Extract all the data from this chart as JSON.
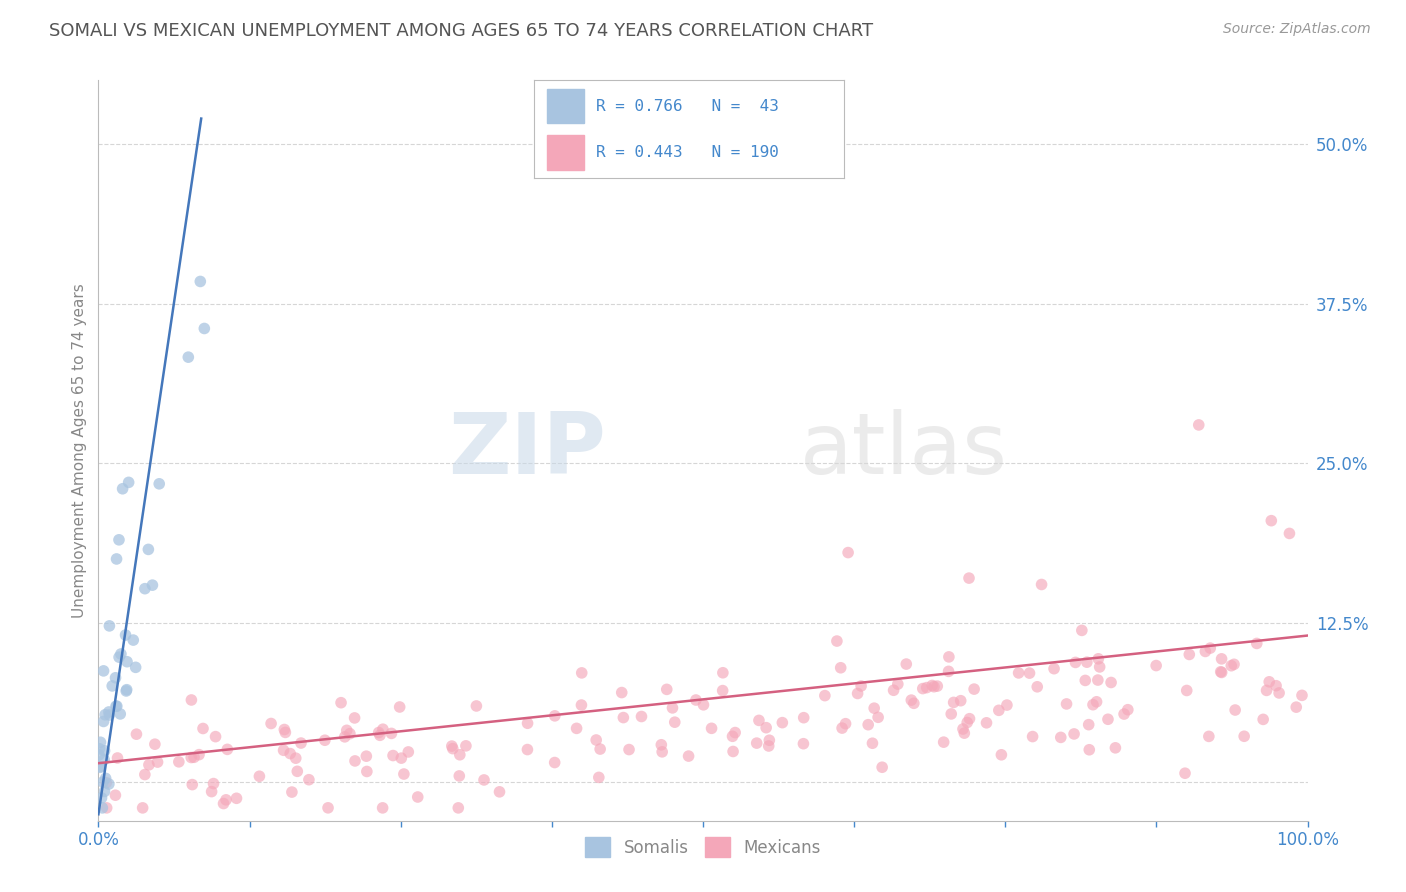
{
  "title": "SOMALI VS MEXICAN UNEMPLOYMENT AMONG AGES 65 TO 74 YEARS CORRELATION CHART",
  "source": "Source: ZipAtlas.com",
  "ylabel": "Unemployment Among Ages 65 to 74 years",
  "xlim": [
    0,
    1.0
  ],
  "ylim": [
    -0.03,
    0.55
  ],
  "xticks": [
    0.0,
    0.125,
    0.25,
    0.375,
    0.5,
    0.625,
    0.75,
    0.875,
    1.0
  ],
  "xticklabels": [
    "0.0%",
    "",
    "",
    "",
    "",
    "",
    "",
    "",
    "100.0%"
  ],
  "yticks": [
    0.0,
    0.125,
    0.25,
    0.375,
    0.5
  ],
  "yticklabels": [
    "",
    "12.5%",
    "25.0%",
    "37.5%",
    "50.0%"
  ],
  "somali_R": 0.766,
  "somali_N": 43,
  "mexican_R": 0.443,
  "mexican_N": 190,
  "somali_color": "#a8c4e0",
  "mexican_color": "#f4a7b9",
  "somali_line_color": "#4477bb",
  "mexican_line_color": "#d46080",
  "legend_somali_label": "Somalis",
  "legend_mexican_label": "Mexicans",
  "watermark_zip": "ZIP",
  "watermark_atlas": "atlas",
  "background_color": "#ffffff",
  "grid_color": "#cccccc",
  "title_color": "#555555",
  "axis_label_color": "#4488cc",
  "somali_line_x0": 0.0,
  "somali_line_y0": -0.025,
  "somali_line_x1": 0.085,
  "somali_line_y1": 0.52,
  "mexican_line_x0": 0.0,
  "mexican_line_y0": 0.015,
  "mexican_line_x1": 1.0,
  "mexican_line_y1": 0.115
}
